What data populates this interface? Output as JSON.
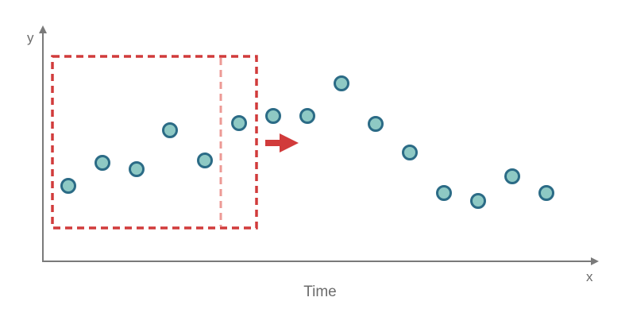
{
  "labels": {
    "y_axis": "y",
    "x_axis": "x",
    "caption": "Time"
  },
  "colors": {
    "axis": "#7a7a7a",
    "point_fill": "#8ec9c4",
    "point_stroke": "#2b6b86",
    "window": "#d13b3b",
    "window_inner": "#ec9a95",
    "arrow": "#d13b3b",
    "text": "#6b6b6b"
  },
  "diagram": {
    "point_count": 15,
    "window_size_points": 5,
    "step_direction": "right"
  }
}
